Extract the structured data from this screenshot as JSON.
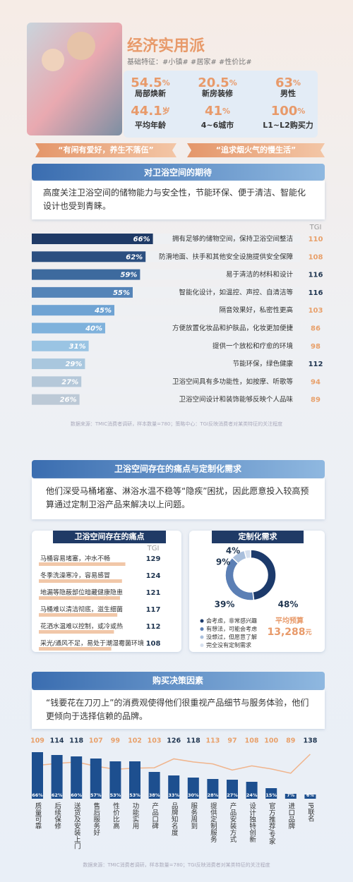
{
  "header": {
    "title": "经济实用派",
    "features": "基础特征：#小镇# #居家# #性价比#",
    "stats": [
      {
        "value": "54.5",
        "unit": "%",
        "label": "局部焕新"
      },
      {
        "value": "20.5",
        "unit": "%",
        "label": "新房装修"
      },
      {
        "value": "63",
        "unit": "%",
        "label": "男性"
      },
      {
        "value": "44.1",
        "unit": "岁",
        "label": "平均年龄"
      },
      {
        "value": "41",
        "unit": "%",
        "label": "4~6城市"
      },
      {
        "value": "100",
        "unit": "%",
        "label": "L1~L2购买力"
      }
    ],
    "quotes": [
      "“有闲有爱好，养生不落伍”",
      "“追求烟火气的慢生活”"
    ]
  },
  "expectations": {
    "title": "对卫浴空间的期待",
    "description": "高度关注卫浴空间的储物能力与安全性，节能环保、便于清洁、智能化设计也受到青睐。",
    "tgi_header": "TGI",
    "chart_data": {
      "type": "hbar",
      "categories": [
        "拥有足够的储物空间，保持卫浴空间整洁",
        "防滑地面、扶手和其他安全设施提供安全保障",
        "易于清洁的材料和设计",
        "智能化设计，如温控、声控、自清洁等",
        "隔音效果好，私密性更高",
        "方便放置化妆品和护肤品，化妆更加便捷",
        "提供一个放松和疗愈的环境",
        "节能环保，绿色健康",
        "卫浴空间具有多功能性，如按摩、听歌等",
        "卫浴空间设计和装饰能够反映个人品味"
      ],
      "values": [
        66,
        62,
        59,
        55,
        45,
        40,
        31,
        29,
        27,
        26
      ],
      "value_labels": [
        "66%",
        "62%",
        "59%",
        "55%",
        "45%",
        "40%",
        "31%",
        "29%",
        "27%",
        "26%"
      ],
      "colors": [
        "#1f3a66",
        "#2c4f80",
        "#3d6a9e",
        "#5584b8",
        "#6fa3d3",
        "#7fb2dc",
        "#9ac4e3",
        "#a9c7de",
        "#b5c8d9",
        "#bcc9d6"
      ],
      "tgi": [
        110,
        108,
        116,
        116,
        103,
        86,
        98,
        112,
        94,
        89
      ],
      "tgi_colors": [
        "#e8a06a",
        "#e8a06a",
        "#1f3550",
        "#1f3550",
        "#e8a06a",
        "#e8a06a",
        "#e8a06a",
        "#1f3550",
        "#e8a06a",
        "#e8a06a"
      ]
    },
    "source": "数据来源：TMIC消费者调研，样本数量=780；策略中心：TGI反映消费者对某类特征的关注程度"
  },
  "pain_custom": {
    "title": "卫浴空间存在的痛点与定制化需求",
    "description": "他们深受马桶堵塞、淋浴水温不稳等“隐疾”困扰，因此愿意投入较高预算通过定制卫浴产品来解决以上问题。",
    "pain_points": {
      "title": "卫浴空间存在的痛点",
      "tgi_header": "TGI",
      "items": [
        "马桶容易堵塞，冲水不畅",
        "冬季洗澡寒冷，容易感冒",
        "地漏等隐蔽部位暗藏健康隐患",
        "马桶难以清洁彻底，滋生细菌",
        "花洒水温难以控制，或冷或热",
        "采光/通风不足，易处于潮湿霉菌环境"
      ],
      "tgi": [
        129,
        124,
        121,
        117,
        112,
        108
      ],
      "color": "#f1c7a8"
    },
    "custom_demand": {
      "title": "定制化需求",
      "chart_data": {
        "type": "donut",
        "categories": [
          "会考虑，非常感兴趣",
          "有想法，可能会考虑",
          "没想过，但愿意了解",
          "完全没有定制需求"
        ],
        "values": [
          48,
          39,
          9,
          4
        ],
        "value_labels": [
          "48%",
          "39%",
          "9%",
          "4%"
        ],
        "colors": [
          "#1c3a6b",
          "#5b7fb5",
          "#a9bfdc",
          "#d5dfee"
        ]
      },
      "budget_label": "平均预算",
      "budget": "13,288",
      "budget_unit": "元"
    }
  },
  "purchase_factors": {
    "title": "购买决策因素",
    "description": "“钱要花在刀刃上”的消费观使得他们很重视产品细节与服务体验，他们更倾向于选择信赖的品牌。",
    "chart_data": {
      "type": "column",
      "categories": [
        "质量可靠",
        "后续保修",
        "送货及安装上门",
        "售后服务好",
        "性价比高",
        "功能实用",
        "产品口碑",
        "品牌知名度",
        "服务周到",
        "提供定制服务",
        "产品安装方式",
        "设计独特创新",
        "官方推荐/专家",
        "进口品牌",
        "IP联名"
      ],
      "values": [
        66,
        62,
        60,
        57,
        53,
        53,
        38,
        33,
        30,
        28,
        27,
        24,
        15,
        7,
        6
      ],
      "value_labels": [
        "66%",
        "62%",
        "60%",
        "57%",
        "53%",
        "53%",
        "38%",
        "33%",
        "30%",
        "28%",
        "27%",
        "24%",
        "15%",
        "7%",
        "6%"
      ],
      "color": "#1d4f8f",
      "tgi": [
        109,
        114,
        118,
        107,
        99,
        102,
        103,
        126,
        118,
        113,
        97,
        108,
        100,
        89,
        138
      ],
      "tgi_colors": [
        "#e8a06a",
        "#1f3550",
        "#1f3550",
        "#e8a06a",
        "#e8a06a",
        "#e8a06a",
        "#e8a06a",
        "#1f3550",
        "#1f3550",
        "#e8a06a",
        "#e8a06a",
        "#e8a06a",
        "#e8a06a",
        "#e8a06a",
        "#1f3550"
      ],
      "line_color": "#f0b48c"
    },
    "source": "数据来源：TMIC消费者调研，样本数量=780；TGI反映消费者对某类特征的关注程度"
  }
}
